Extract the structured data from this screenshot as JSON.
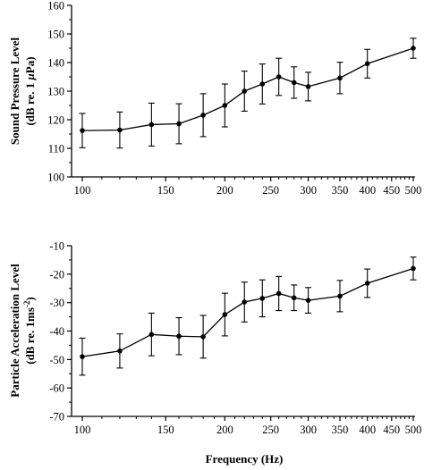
{
  "chart_data": [
    {
      "type": "line",
      "ylabel_line1": "Sound Pressure Level",
      "ylabel_line2_prefix": "(dB re. 1 ",
      "ylabel_line2_mu": "μ",
      "ylabel_line2_suffix": "Pa)",
      "xscale": "log",
      "xlim": [
        100,
        500
      ],
      "ylim": [
        100,
        160
      ],
      "x_ticks": [
        100,
        150,
        200,
        250,
        300,
        350,
        400,
        450,
        500
      ],
      "y_ticks": [
        100,
        110,
        120,
        130,
        140,
        150,
        160
      ],
      "x": [
        100,
        120,
        140,
        160,
        180,
        200,
        220,
        240,
        260,
        280,
        300,
        350,
        400,
        500
      ],
      "values": [
        116.2,
        116.4,
        118.3,
        118.6,
        121.6,
        125.0,
        130.0,
        132.5,
        135.0,
        133.0,
        131.6,
        134.6,
        139.6,
        145.0
      ],
      "error": [
        6.0,
        6.3,
        7.5,
        7.0,
        7.5,
        7.5,
        7.0,
        7.0,
        6.5,
        5.5,
        5.0,
        5.5,
        5.0,
        3.5
      ]
    },
    {
      "type": "line",
      "ylabel_line1": "Particle Acceleration Level",
      "ylabel_line2_prefix": "(dB re. 1ms",
      "ylabel_line2_sup": "-2",
      "ylabel_line2_suffix": ")",
      "xlabel": "Frequency (Hz)",
      "xscale": "log",
      "xlim": [
        100,
        500
      ],
      "ylim": [
        -70,
        -10
      ],
      "x_ticks": [
        100,
        150,
        200,
        250,
        300,
        350,
        400,
        450,
        500
      ],
      "y_ticks": [
        -70,
        -60,
        -50,
        -40,
        -30,
        -20,
        -10
      ],
      "x": [
        100,
        120,
        140,
        160,
        180,
        200,
        220,
        240,
        260,
        280,
        300,
        350,
        400,
        500
      ],
      "values": [
        -49.0,
        -47.0,
        -41.2,
        -41.8,
        -42.0,
        -34.2,
        -29.8,
        -28.5,
        -26.8,
        -28.3,
        -29.2,
        -27.7,
        -23.2,
        -18.0
      ],
      "error": [
        6.5,
        6.0,
        7.5,
        6.5,
        7.5,
        7.5,
        7.0,
        6.5,
        6.0,
        4.5,
        4.5,
        5.5,
        5.0,
        4.0
      ]
    }
  ]
}
